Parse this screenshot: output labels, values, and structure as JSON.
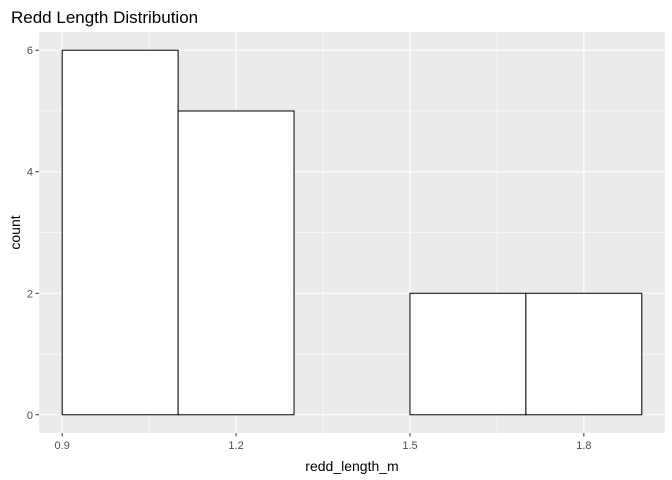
{
  "chart_data": {
    "type": "bar",
    "title": "Redd Length Distribution",
    "xlabel": "redd_length_m",
    "ylabel": "count",
    "bins": [
      {
        "x0": 0.9,
        "x1": 1.1,
        "count": 6
      },
      {
        "x0": 1.1,
        "x1": 1.3,
        "count": 5
      },
      {
        "x0": 1.3,
        "x1": 1.5,
        "count": 0
      },
      {
        "x0": 1.5,
        "x1": 1.7,
        "count": 2
      },
      {
        "x0": 1.7,
        "x1": 1.9,
        "count": 2
      }
    ],
    "xlim": [
      0.86,
      1.94
    ],
    "ylim": [
      -0.3,
      6.3
    ],
    "x_ticks": [
      0.9,
      1.2,
      1.5,
      1.8
    ],
    "x_tick_labels": [
      "0.9",
      "1.2",
      "1.5",
      "1.8"
    ],
    "y_ticks": [
      0,
      2,
      4,
      6
    ],
    "y_tick_labels": [
      "0",
      "2",
      "4",
      "6"
    ],
    "grid": true,
    "colors": {
      "panel": "#ebebeb",
      "grid_major": "#ffffff",
      "bar_fill": "#ffffff",
      "bar_stroke": "#000000",
      "tick_text": "#4d4d4d",
      "tick_mark": "#333333"
    }
  }
}
